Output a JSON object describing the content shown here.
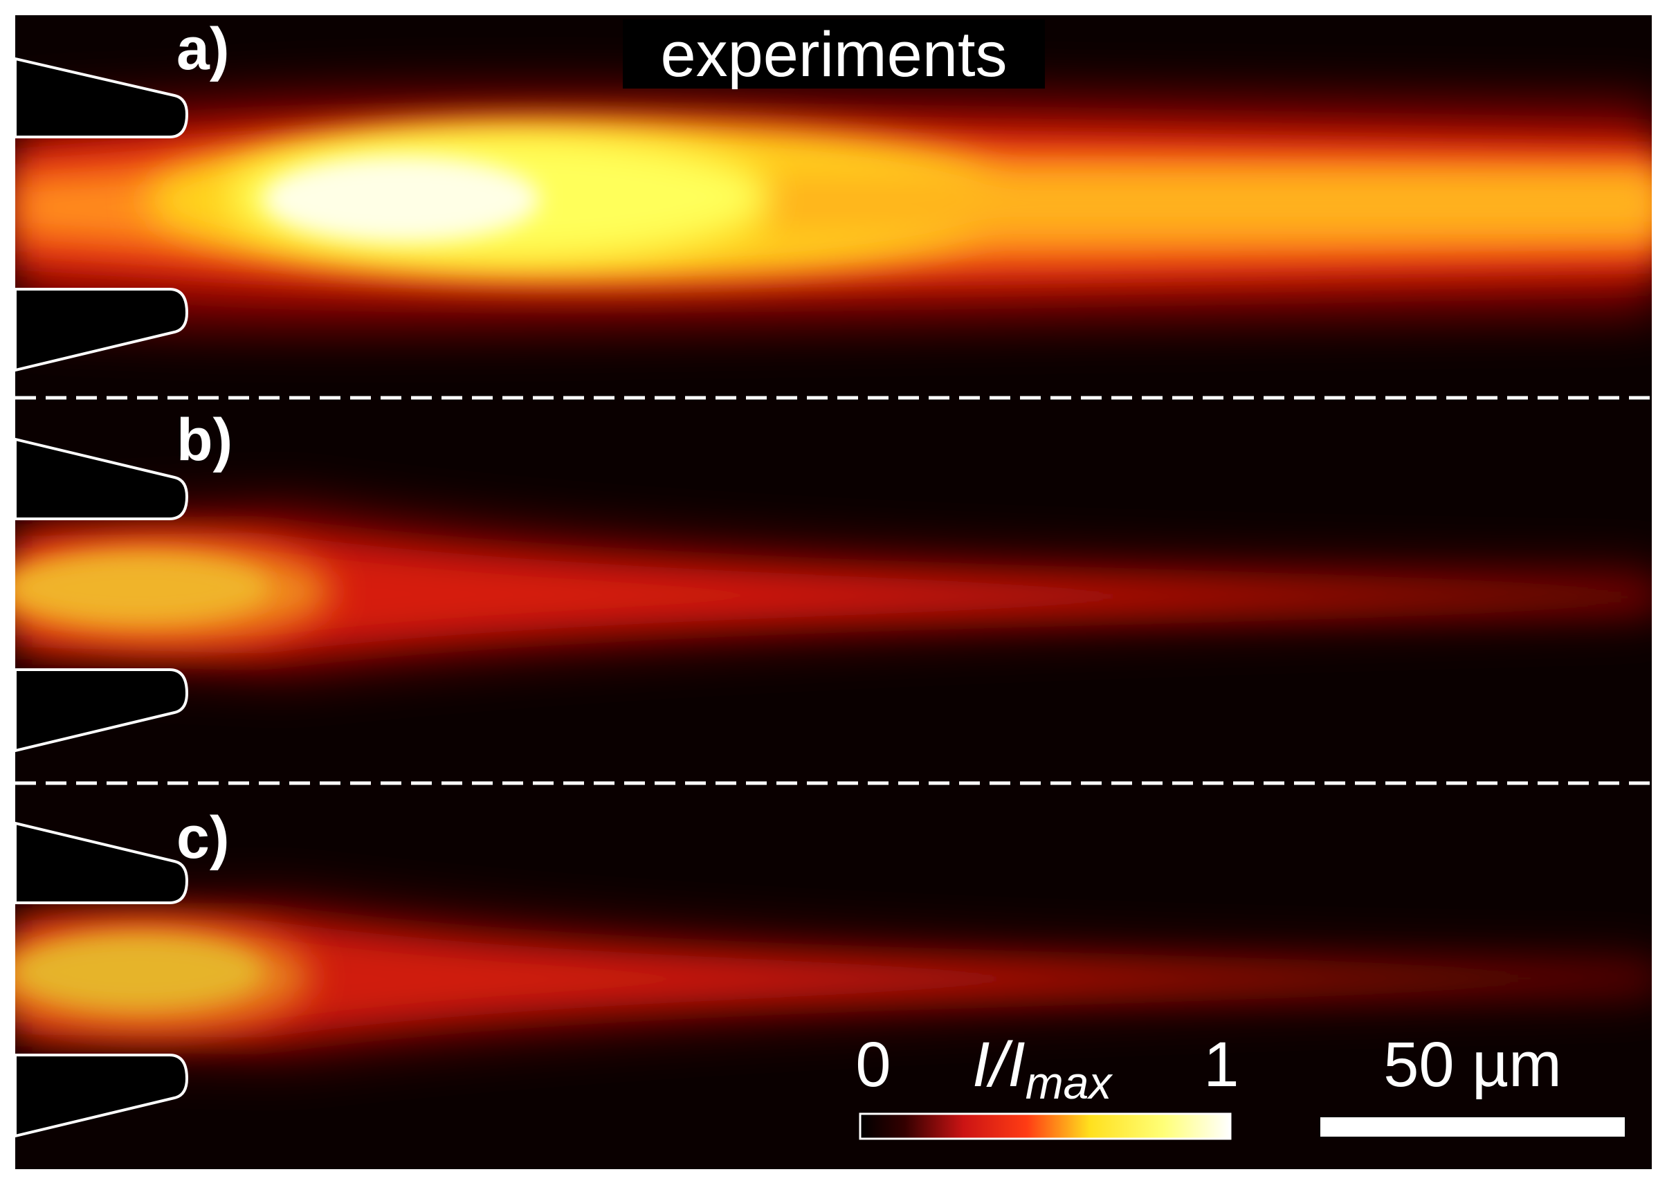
{
  "title": "experiments",
  "panels": [
    {
      "label": "a)",
      "plume": "strong"
    },
    {
      "label": "b)",
      "plume": "weak"
    },
    {
      "label": "c)",
      "plume": "weak"
    }
  ],
  "colorbar": {
    "min_label": "0",
    "max_label": "1",
    "quantity_main": "I/I",
    "quantity_sub": "max",
    "colors": [
      "#000000",
      "#330000",
      "#cc1414",
      "#ff3c14",
      "#ffe01e",
      "#ffff78",
      "#ffffff"
    ]
  },
  "scalebar": {
    "label": "50 µm"
  },
  "colors": {
    "background": "#0a0000",
    "divider": "#ffffff",
    "nozzle_fill": "#000000",
    "nozzle_outline": "#ffffff"
  }
}
